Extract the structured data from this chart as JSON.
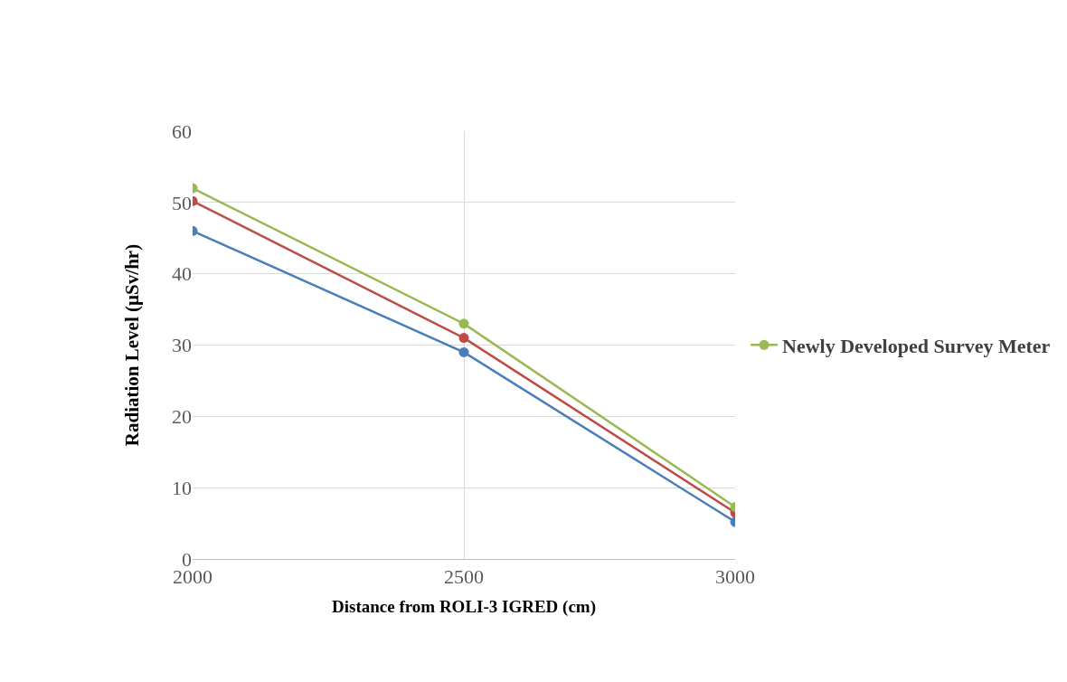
{
  "chart_data": {
    "type": "line",
    "xlabel": "Distance from ROLI-3 IGRED (cm)",
    "ylabel": "Radiation Level (µSv/hr)",
    "x": [
      2000,
      2500,
      3000
    ],
    "series": [
      {
        "color": "#4a7ebb",
        "values": [
          46,
          29,
          5.2
        ]
      },
      {
        "color": "#be4b48",
        "values": [
          50.2,
          31,
          6.5
        ]
      },
      {
        "name": "Newly Developed Survey Meter",
        "color": "#98b954",
        "values": [
          52,
          33,
          7.3
        ]
      }
    ],
    "xlim": [
      2000,
      3000
    ],
    "xticks": [
      2000,
      2500,
      3000
    ],
    "ylim": [
      0,
      60
    ],
    "yticks": [
      0,
      10,
      20,
      30,
      40,
      50,
      60
    ],
    "grid": true,
    "legend": "right",
    "marker": "circle",
    "line_style": "solid"
  }
}
